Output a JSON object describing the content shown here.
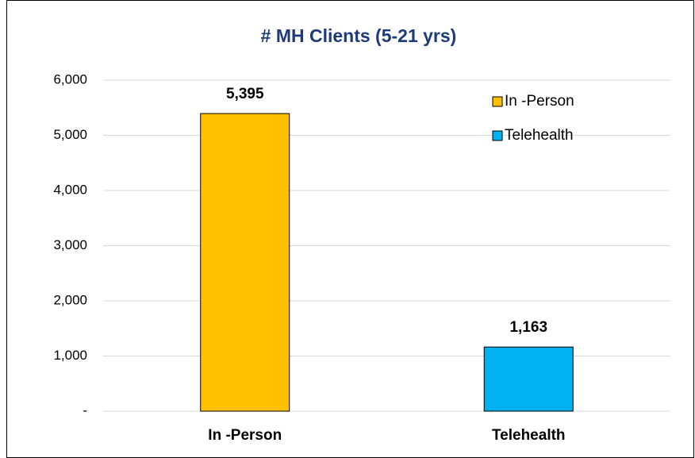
{
  "chart_data": {
    "type": "bar",
    "title": "# MH Clients (5-21 yrs)",
    "categories": [
      "In -Person",
      "Telehealth"
    ],
    "values": [
      5395,
      1163
    ],
    "value_labels": [
      "5,395",
      "1,163"
    ],
    "colors": [
      "#ffc000",
      "#00b0f0"
    ],
    "ylim": [
      0,
      6000
    ],
    "yticks": [
      {
        "value": 0,
        "label": "-"
      },
      {
        "value": 1000,
        "label": "1,000"
      },
      {
        "value": 2000,
        "label": "2,000"
      },
      {
        "value": 3000,
        "label": "3,000"
      },
      {
        "value": 4000,
        "label": "4,000"
      },
      {
        "value": 5000,
        "label": "5,000"
      },
      {
        "value": 6000,
        "label": "6,000"
      }
    ],
    "grid": true,
    "legend": "upper right"
  }
}
